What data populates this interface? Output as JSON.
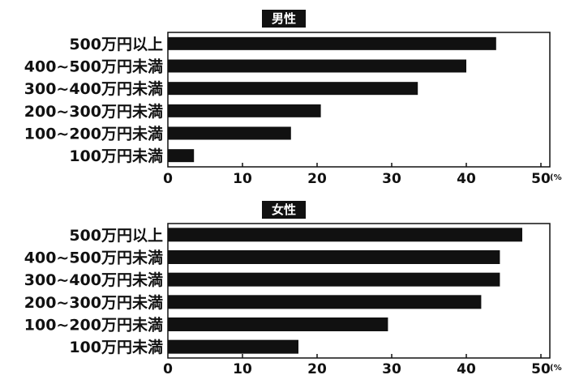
{
  "chart_data": [
    {
      "type": "bar",
      "orientation": "horizontal",
      "title": "男性",
      "categories": [
        "500万円以上",
        "400~500万円未満",
        "300~400万円未満",
        "200~300万円未満",
        "100~200万円未満",
        "100万円未満"
      ],
      "values": [
        44,
        40,
        33.5,
        20.5,
        16.5,
        3.5
      ],
      "xlim": [
        0,
        50
      ],
      "xticks": [
        "0",
        "10",
        "20",
        "30",
        "40",
        "50"
      ],
      "x_unit": "(%)",
      "colors": {
        "bar": "#111111",
        "title_bg": "#111111"
      }
    },
    {
      "type": "bar",
      "orientation": "horizontal",
      "title": "女性",
      "categories": [
        "500万円以上",
        "400~500万円未満",
        "300~400万円未満",
        "200~300万円未満",
        "100~200万円未満",
        "100万円未満"
      ],
      "values": [
        47.5,
        44.5,
        44.5,
        42,
        29.5,
        17.5
      ],
      "xlim": [
        0,
        50
      ],
      "xticks": [
        "0",
        "10",
        "20",
        "30",
        "40",
        "50"
      ],
      "x_unit": "(%)",
      "colors": {
        "bar": "#111111",
        "title_bg": "#111111"
      }
    }
  ]
}
